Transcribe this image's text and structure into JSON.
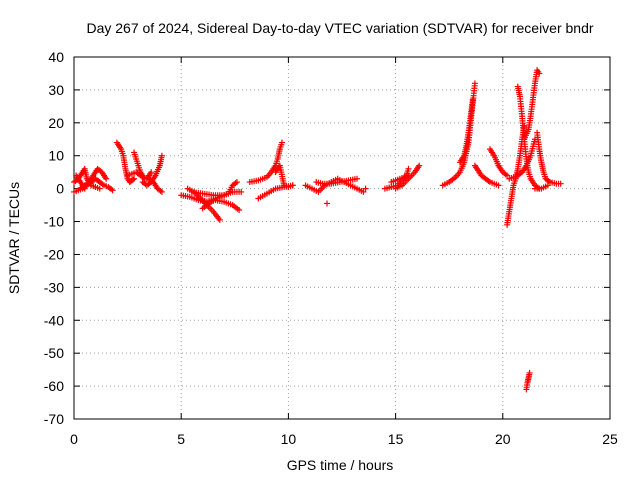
{
  "chart_data": {
    "type": "scatter",
    "title": "Day 267 of 2024, Sidereal Day-to-day VTEC variation (SDTVAR) for receiver bndr",
    "xlabel": "GPS time / hours",
    "ylabel": "SDTVAR / TECUs",
    "xlim": [
      0,
      25
    ],
    "ylim": [
      -70,
      40
    ],
    "xticks": [
      0,
      5,
      10,
      15,
      20,
      25
    ],
    "yticks": [
      -70,
      -60,
      -50,
      -40,
      -30,
      -20,
      -10,
      0,
      10,
      20,
      30,
      40
    ],
    "grid": true,
    "marker": "plus",
    "color": "#ff0000",
    "segments": [
      {
        "x": [
          0.0,
          0.2,
          0.4,
          0.5,
          0.6,
          0.8,
          1.0,
          1.2
        ],
        "y": [
          2.0,
          3.0,
          5.0,
          6.0,
          3.0,
          1.0,
          0.5,
          0.0
        ]
      },
      {
        "x": [
          0.1,
          0.2,
          0.3,
          0.4,
          0.5
        ],
        "y": [
          4.0,
          3.0,
          2.0,
          1.0,
          0.0
        ]
      },
      {
        "x": [
          0.3,
          0.5,
          0.7,
          0.9,
          1.1,
          1.3,
          1.5
        ],
        "y": [
          0.0,
          1.0,
          2.0,
          4.0,
          6.0,
          5.0,
          3.0
        ]
      },
      {
        "x": [
          0.0,
          0.2,
          0.4,
          0.6,
          0.8,
          1.0,
          1.2,
          1.4,
          1.6,
          1.8
        ],
        "y": [
          -1.0,
          -0.5,
          0.0,
          1.0,
          2.0,
          3.0,
          2.0,
          1.0,
          0.5,
          -0.5
        ]
      },
      {
        "x": [
          2.0,
          2.1,
          2.2,
          2.3,
          2.4,
          2.5,
          2.6,
          2.7,
          2.8
        ],
        "y": [
          14.0,
          13.0,
          12.0,
          10.0,
          6.0,
          3.0,
          2.0,
          2.5,
          3.0
        ]
      },
      {
        "x": [
          2.8,
          2.9,
          3.0,
          3.1,
          3.2,
          3.3,
          3.4,
          3.5,
          3.6
        ],
        "y": [
          11.0,
          9.0,
          7.0,
          5.0,
          4.0,
          3.0,
          3.0,
          4.0,
          5.0
        ]
      },
      {
        "x": [
          3.2,
          3.4,
          3.6,
          3.8,
          4.0,
          4.1
        ],
        "y": [
          2.0,
          1.0,
          2.0,
          4.0,
          7.0,
          10.0
        ]
      },
      {
        "x": [
          2.5,
          2.7,
          2.9,
          3.1,
          3.3,
          3.5,
          3.7,
          3.9,
          4.1
        ],
        "y": [
          4.0,
          4.5,
          5.0,
          4.0,
          3.0,
          3.0,
          2.0,
          0.0,
          -1.0
        ]
      },
      {
        "x": [
          5.0,
          5.4,
          5.8,
          6.2,
          6.6,
          7.0,
          7.4,
          7.8
        ],
        "y": [
          -2.0,
          -2.5,
          -3.5,
          -4.0,
          -3.0,
          -2.0,
          -1.0,
          -1.0
        ]
      },
      {
        "x": [
          5.3,
          5.6,
          5.9,
          6.2,
          6.5,
          6.8
        ],
        "y": [
          0.0,
          -1.0,
          -3.0,
          -5.0,
          -7.0,
          -9.5
        ]
      },
      {
        "x": [
          5.8,
          6.2,
          6.6,
          7.0,
          7.4,
          7.7
        ],
        "y": [
          -3.0,
          -4.0,
          -3.5,
          -4.0,
          -5.0,
          -6.5
        ]
      },
      {
        "x": [
          6.0,
          6.4,
          6.8,
          7.2,
          7.4,
          7.6
        ],
        "y": [
          -6.0,
          -4.0,
          -2.5,
          -1.5,
          1.0,
          2.0
        ]
      },
      {
        "x": [
          5.5,
          6.0,
          6.5,
          7.0
        ],
        "y": [
          -1.0,
          -1.5,
          -2.0,
          -2.0
        ]
      },
      {
        "x": [
          8.2,
          8.6,
          9.0,
          9.2,
          9.4,
          9.5,
          9.6,
          9.7
        ],
        "y": [
          2.0,
          2.5,
          3.5,
          5.0,
          7.0,
          9.0,
          12.0,
          14.0
        ]
      },
      {
        "x": [
          8.6,
          9.0,
          9.4,
          9.8,
          10.2
        ],
        "y": [
          -3.0,
          -1.5,
          0.0,
          0.5,
          1.0
        ]
      },
      {
        "x": [
          9.4,
          9.6,
          9.8,
          10.0,
          10.2
        ],
        "y": [
          5.0,
          7.0,
          1.0,
          0.5,
          1.0
        ]
      },
      {
        "x": [
          10.8,
          11.1,
          11.4,
          11.7,
          12.0,
          12.3,
          12.6,
          12.9,
          13.2,
          13.5
        ],
        "y": [
          1.0,
          0.0,
          -1.0,
          1.0,
          2.0,
          3.0,
          2.0,
          1.0,
          0.0,
          -1.0
        ]
      },
      {
        "x": [
          11.3,
          11.6,
          12.0,
          12.4,
          12.8,
          13.2
        ],
        "y": [
          2.0,
          1.5,
          1.5,
          2.0,
          2.5,
          3.0
        ]
      },
      {
        "x": [
          11.8
        ],
        "y": [
          -4.5
        ]
      },
      {
        "x": [
          13.6
        ],
        "y": [
          0.0
        ]
      },
      {
        "x": [
          14.5,
          14.8,
          15.1,
          15.3,
          15.5,
          15.6
        ],
        "y": [
          0.0,
          0.5,
          1.0,
          2.5,
          4.0,
          6.0
        ]
      },
      {
        "x": [
          15.0,
          15.3,
          15.6,
          15.9,
          16.1
        ],
        "y": [
          0.0,
          1.0,
          3.0,
          5.0,
          7.0
        ]
      },
      {
        "x": [
          14.8,
          15.2,
          15.6
        ],
        "y": [
          2.0,
          3.0,
          4.0
        ]
      },
      {
        "x": [
          17.2,
          17.5,
          17.8,
          18.0,
          18.2,
          18.4,
          18.5,
          18.6,
          18.7
        ],
        "y": [
          1.0,
          2.0,
          3.5,
          5.0,
          8.0,
          14.0,
          20.0,
          26.0,
          32.0
        ]
      },
      {
        "x": [
          18.0,
          18.2,
          18.3,
          18.4,
          18.5,
          18.6
        ],
        "y": [
          8.0,
          10.0,
          13.0,
          17.0,
          22.0,
          27.0
        ]
      },
      {
        "x": [
          18.7,
          18.8,
          19.0,
          19.2,
          19.4,
          19.6,
          19.8
        ],
        "y": [
          7.0,
          6.0,
          4.0,
          3.0,
          2.0,
          1.5,
          1.0
        ]
      },
      {
        "x": [
          19.4,
          19.6,
          19.8,
          20.0,
          20.2
        ],
        "y": [
          12.0,
          10.0,
          7.0,
          5.0,
          4.0
        ]
      },
      {
        "x": [
          20.2,
          20.3,
          20.4,
          20.5,
          20.6,
          20.7,
          20.8,
          20.9,
          21.0
        ],
        "y": [
          -11.0,
          -7.0,
          -3.0,
          1.0,
          3.0,
          6.0,
          10.0,
          15.0,
          19.0
        ]
      },
      {
        "x": [
          20.3,
          20.5,
          20.7,
          20.9,
          21.1,
          21.3,
          21.5
        ],
        "y": [
          3.0,
          3.5,
          4.0,
          5.0,
          7.0,
          10.0,
          15.0
        ]
      },
      {
        "x": [
          20.7,
          20.8,
          20.9,
          21.0,
          21.1,
          21.2,
          21.3,
          21.5,
          21.7
        ],
        "y": [
          31.0,
          28.0,
          22.0,
          15.0,
          9.0,
          5.0,
          3.0,
          1.0,
          0.0
        ]
      },
      {
        "x": [
          21.0,
          21.2,
          21.3,
          21.4,
          21.5,
          21.6,
          21.7
        ],
        "y": [
          15.0,
          18.0,
          22.0,
          27.0,
          32.0,
          36.0,
          35.0
        ]
      },
      {
        "x": [
          21.6,
          21.7,
          21.8,
          21.9,
          22.0,
          22.2,
          22.5,
          22.7
        ],
        "y": [
          17.0,
          12.0,
          8.0,
          5.0,
          3.0,
          2.0,
          1.5,
          1.5
        ]
      },
      {
        "x": [
          21.5,
          21.8,
          22.1
        ],
        "y": [
          0.0,
          0.0,
          1.0
        ]
      },
      {
        "x": [
          21.1,
          21.15,
          21.2,
          21.25
        ],
        "y": [
          -61.0,
          -59.0,
          -57.5,
          -56.0
        ]
      }
    ]
  }
}
